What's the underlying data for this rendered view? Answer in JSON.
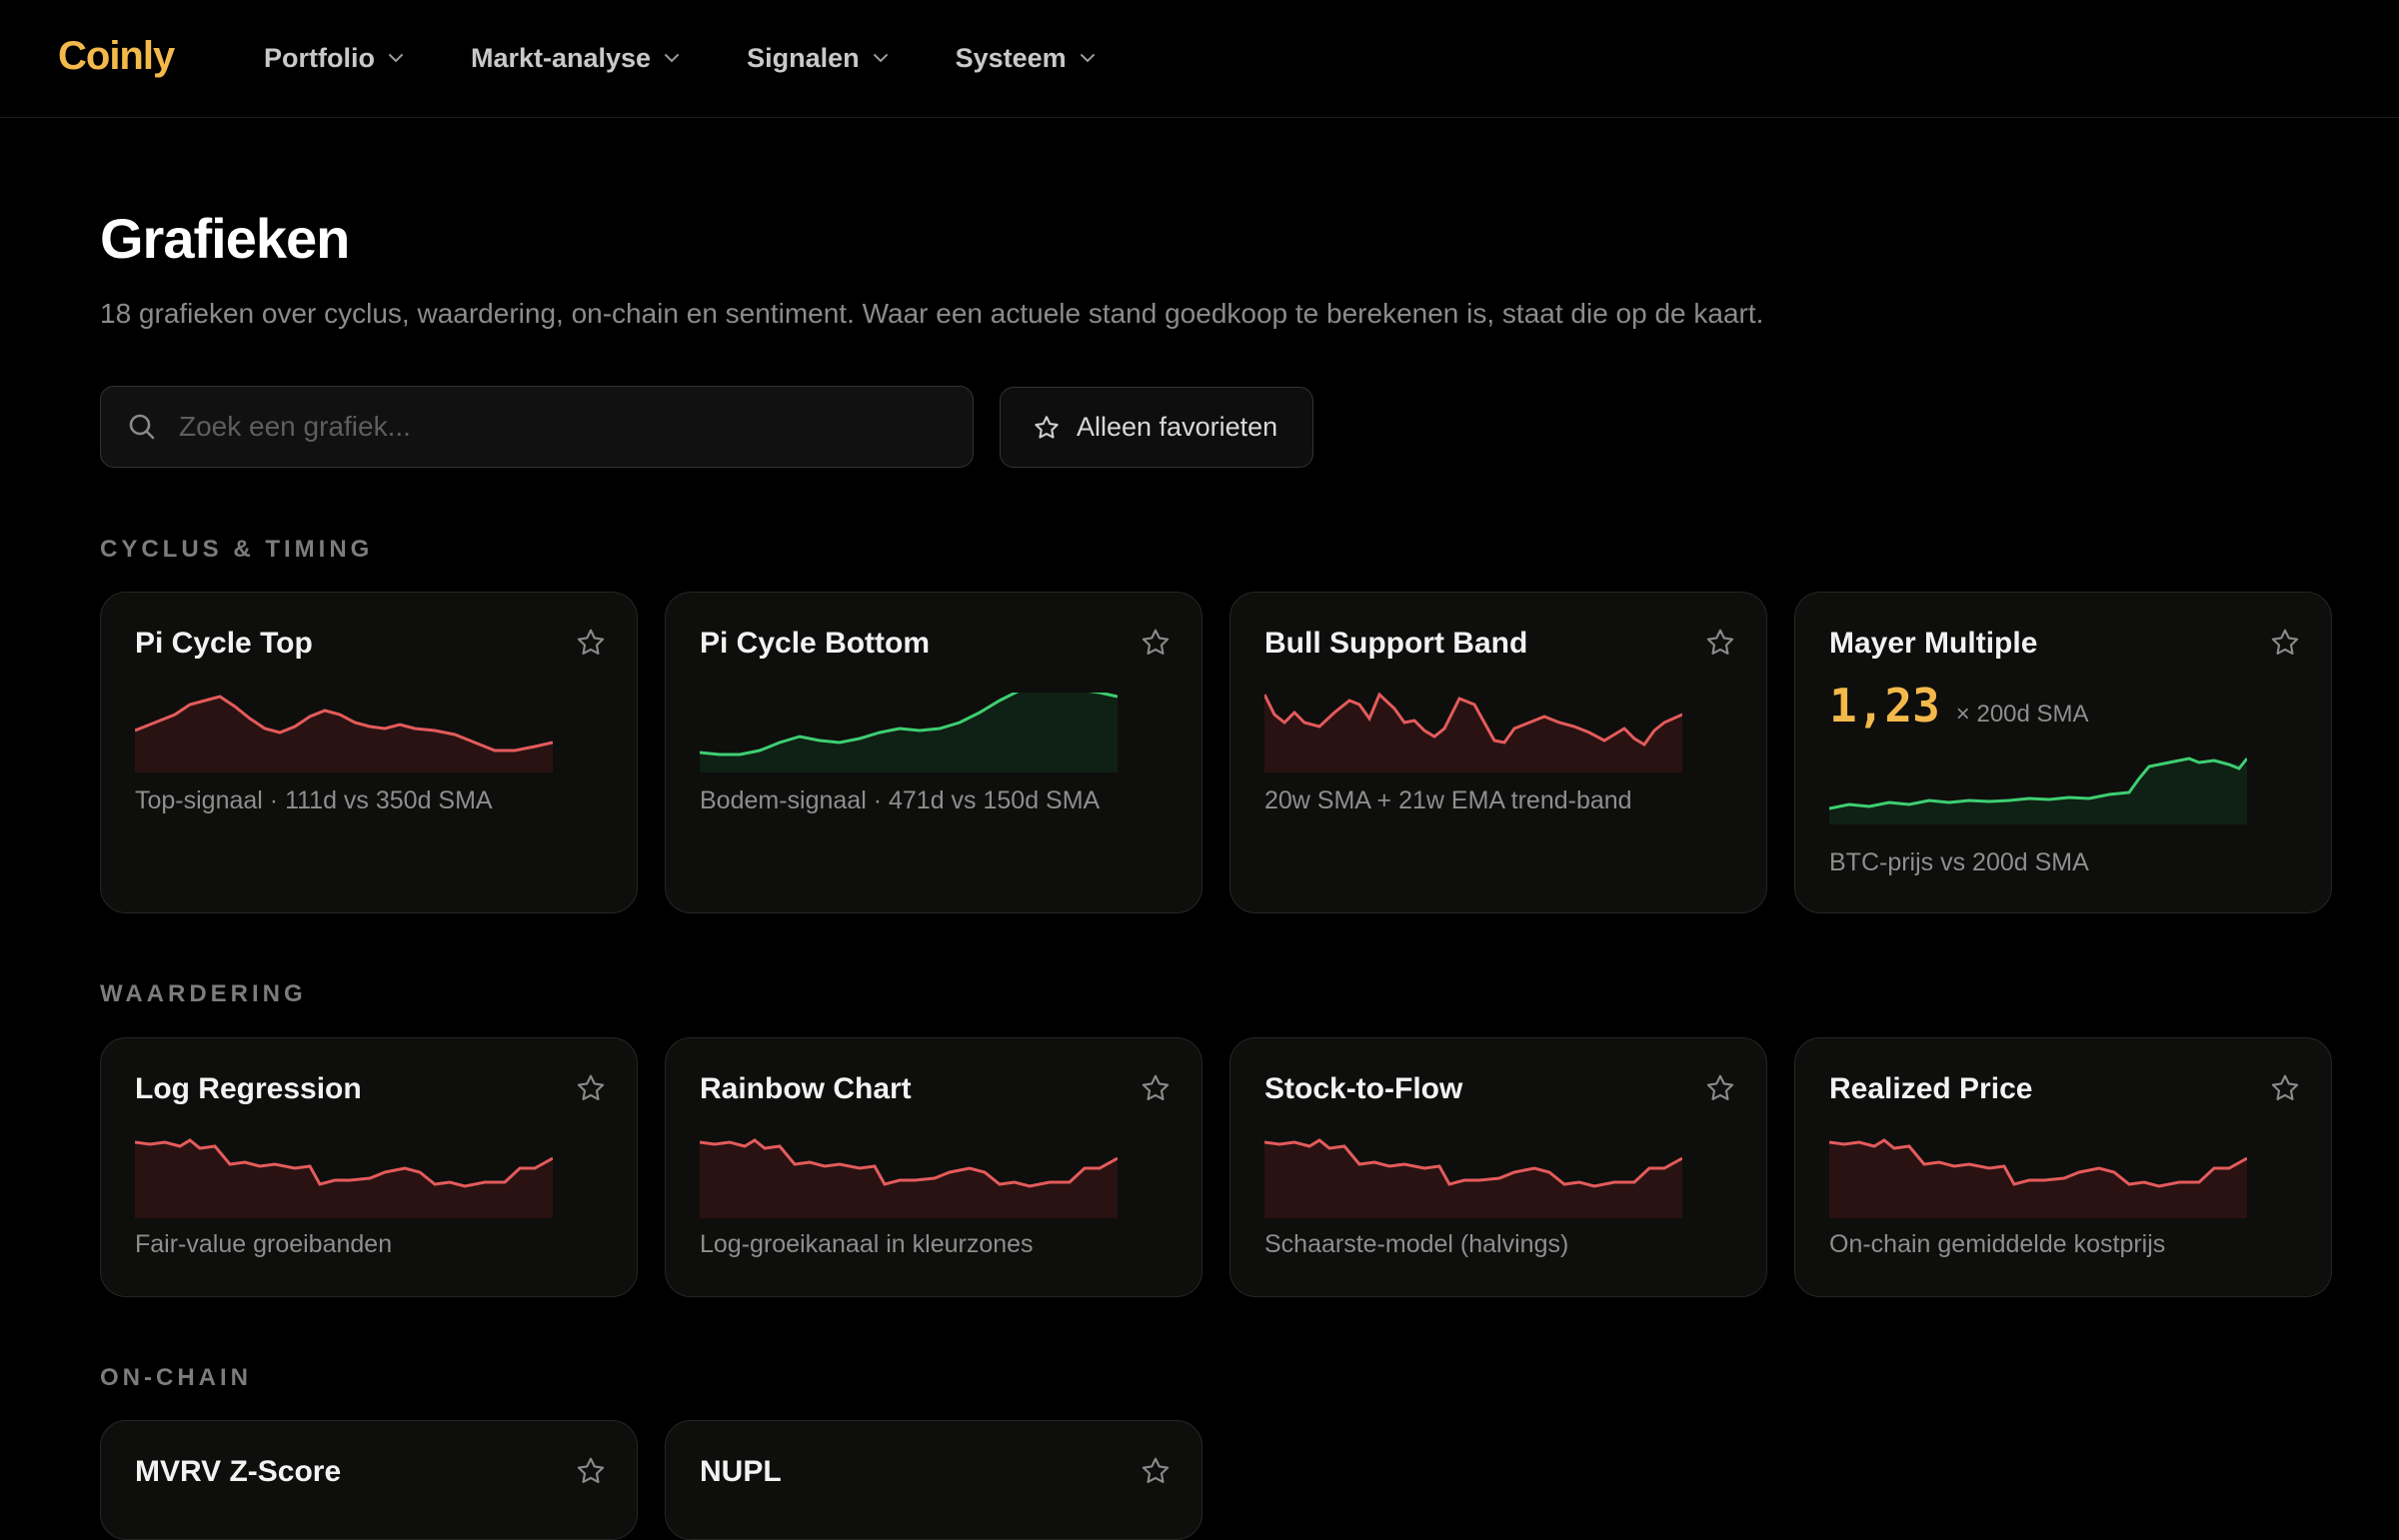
{
  "app": {
    "logo": "Coinly"
  },
  "nav": [
    {
      "label": "Portfolio"
    },
    {
      "label": "Markt-analyse"
    },
    {
      "label": "Signalen"
    },
    {
      "label": "Systeem"
    }
  ],
  "page": {
    "title": "Grafieken",
    "subtitle": "18 grafieken over cyclus, waardering, on-chain en sentiment. Waar een actuele stand goedkoop te berekenen is, staat die op de kaart."
  },
  "search": {
    "placeholder": "Zoek een grafiek...",
    "value": ""
  },
  "favorites_button": {
    "label": "Alleen favorieten"
  },
  "colors": {
    "accent": "#f3b94a",
    "down": "#e45b5b",
    "up": "#3ecf72"
  },
  "sections": [
    {
      "label": "CYCLUS & TIMING",
      "cards": [
        {
          "title": "Pi Cycle Top",
          "desc": "Top-signaal · 111d vs 350d SMA",
          "trend": "red"
        },
        {
          "title": "Pi Cycle Bottom",
          "desc": "Bodem-signaal · 471d vs 150d SMA",
          "trend": "green"
        },
        {
          "title": "Bull Support Band",
          "desc": "20w SMA + 21w EMA trend-band",
          "trend": "red"
        },
        {
          "title": "Mayer Multiple",
          "desc": "BTC-prijs vs 200d SMA",
          "trend": "green",
          "metric": "1,23",
          "metric_unit": "× 200d SMA"
        }
      ]
    },
    {
      "label": "WAARDERING",
      "cards": [
        {
          "title": "Log Regression",
          "desc": "Fair-value groeibanden",
          "trend": "red"
        },
        {
          "title": "Rainbow Chart",
          "desc": "Log-groeikanaal in kleurzones",
          "trend": "red"
        },
        {
          "title": "Stock-to-Flow",
          "desc": "Schaarste-model (halvings)",
          "trend": "red"
        },
        {
          "title": "Realized Price",
          "desc": "On-chain gemiddelde kostprijs",
          "trend": "red"
        }
      ]
    },
    {
      "label": "ON-CHAIN",
      "cards": [
        {
          "title": "MVRV Z-Score"
        },
        {
          "title": "NUPL"
        }
      ]
    }
  ]
}
